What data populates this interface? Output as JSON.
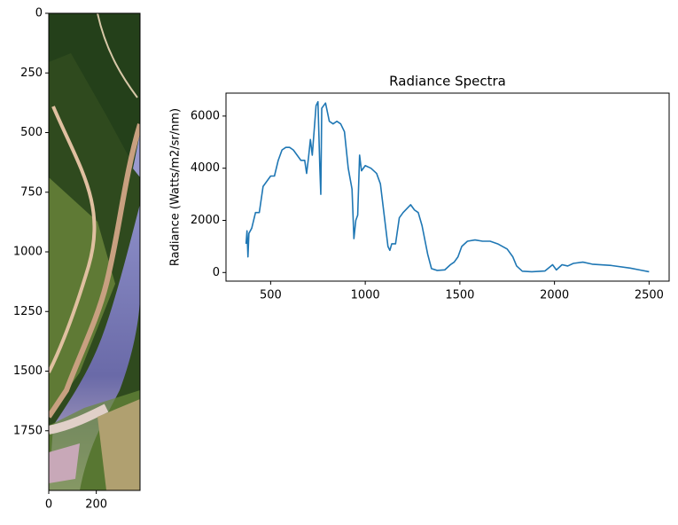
{
  "chart_data": [
    {
      "type": "image",
      "xlim": [
        0,
        384
      ],
      "ylim": [
        2000,
        0
      ],
      "xticks": [
        0,
        200
      ],
      "yticks": [
        0,
        250,
        500,
        750,
        1000,
        1250,
        1500,
        1750
      ]
    },
    {
      "type": "line",
      "title": "Radiance Spectra",
      "y_label": "Radiance (Watts/m2/sr/nm)",
      "x": [
        370,
        375,
        380,
        385,
        400,
        420,
        440,
        460,
        480,
        500,
        520,
        540,
        560,
        580,
        600,
        620,
        640,
        660,
        680,
        690,
        700,
        710,
        720,
        740,
        750,
        760,
        765,
        770,
        790,
        810,
        830,
        850,
        870,
        890,
        910,
        930,
        940,
        950,
        960,
        970,
        980,
        1000,
        1030,
        1060,
        1080,
        1100,
        1120,
        1130,
        1140,
        1160,
        1180,
        1200,
        1240,
        1260,
        1280,
        1300,
        1330,
        1350,
        1380,
        1420,
        1450,
        1470,
        1490,
        1510,
        1540,
        1580,
        1620,
        1660,
        1700,
        1750,
        1780,
        1800,
        1830,
        1880,
        1950,
        1990,
        2010,
        2040,
        2070,
        2100,
        2150,
        2200,
        2300,
        2400,
        2450,
        2500
      ],
      "series": [
        {
          "color": "#1f77b4",
          "values": [
            1100,
            1600,
            600,
            1500,
            1700,
            2300,
            2300,
            3300,
            3500,
            3700,
            3700,
            4300,
            4700,
            4800,
            4800,
            4700,
            4500,
            4300,
            4300,
            3800,
            4400,
            5100,
            4500,
            6400,
            6550,
            4000,
            3000,
            6300,
            6500,
            5800,
            5700,
            5800,
            5700,
            5400,
            4000,
            3200,
            1300,
            2000,
            2200,
            4500,
            3900,
            4100,
            4000,
            3800,
            3400,
            2200,
            1000,
            850,
            1100,
            1100,
            2100,
            2300,
            2600,
            2400,
            2300,
            1800,
            700,
            150,
            80,
            100,
            300,
            400,
            600,
            1000,
            1200,
            1250,
            1200,
            1200,
            1100,
            900,
            600,
            250,
            50,
            30,
            60,
            300,
            100,
            300,
            250,
            350,
            400,
            320,
            270,
            170,
            100,
            30
          ]
        }
      ],
      "xlim": [
        264,
        2606
      ],
      "ylim": [
        -330,
        6880
      ],
      "xticks": [
        500,
        1000,
        1500,
        2000,
        2500
      ],
      "yticks": [
        0,
        2000,
        4000,
        6000
      ]
    }
  ]
}
